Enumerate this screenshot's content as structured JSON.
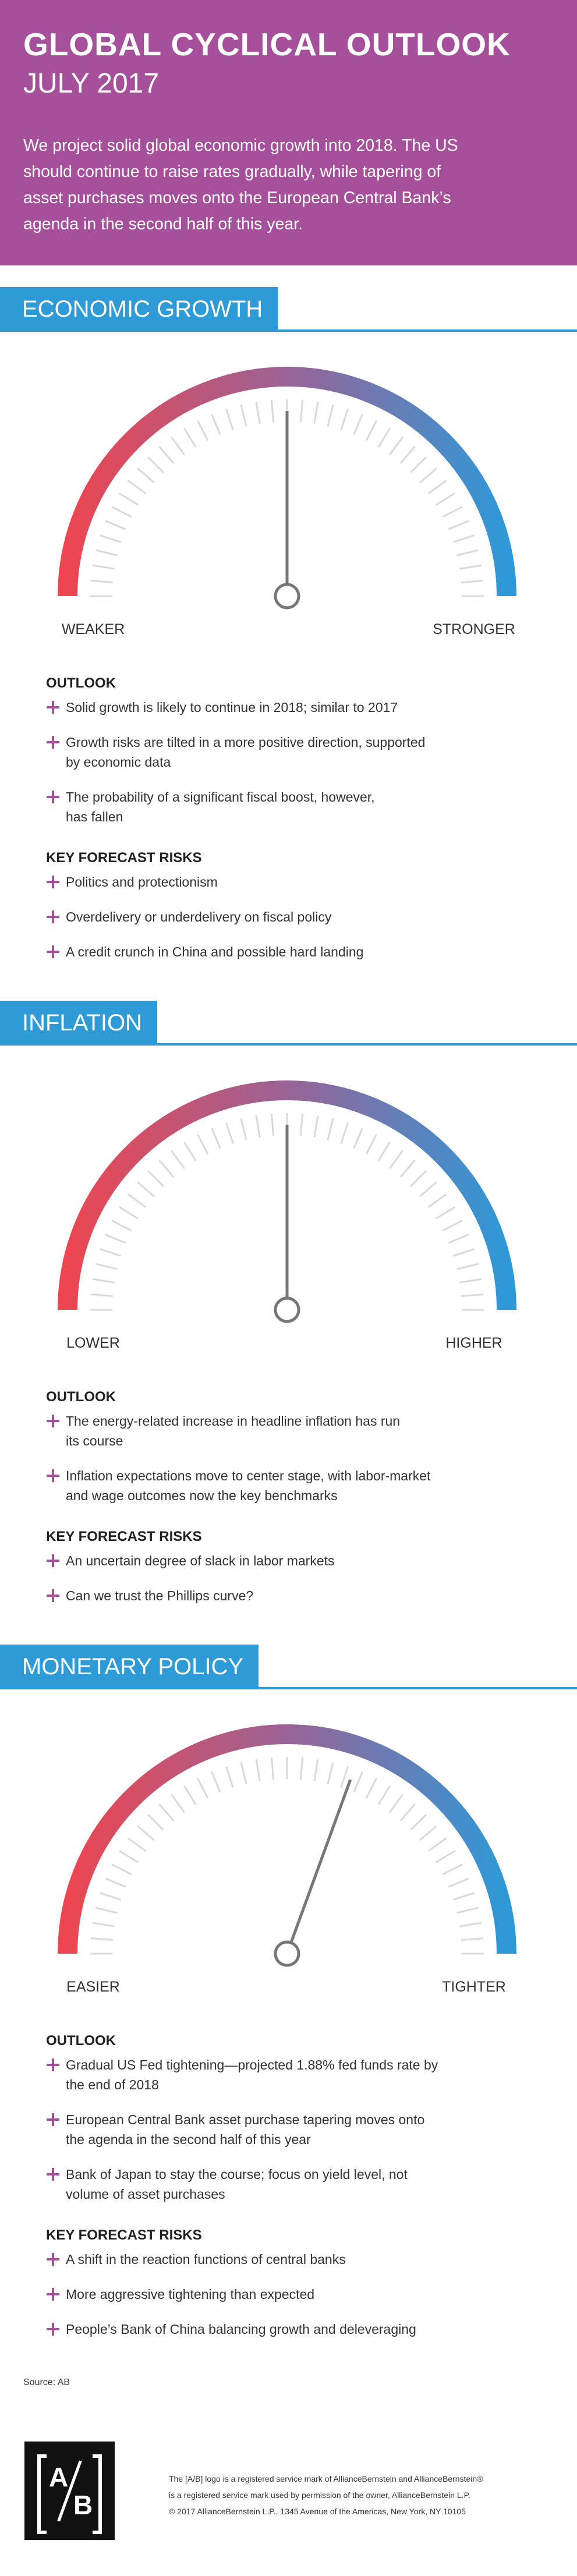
{
  "header": {
    "title": "GLOBAL CYCLICAL OUTLOOK",
    "date": "JULY 2017",
    "intro": [
      "We project solid global economic growth into 2018. The US",
      "should continue to raise rates gradually, while tapering of",
      "asset purchases moves onto the European Central Bank’s",
      "agenda in the second half of this year."
    ]
  },
  "sections": [
    {
      "title": "ECONOMIC GROWTH",
      "gauge": {
        "left_label": "WEAKER",
        "right_label": "STRONGER"
      },
      "outlook_heading": "OUTLOOK",
      "outlook": [
        [
          "Solid growth is likely to continue in 2018; similar to 2017"
        ],
        [
          "Growth risks are tilted in a more positive direction, supported",
          "by economic data"
        ],
        [
          "The probability of a significant fiscal boost, however,",
          "has fallen"
        ]
      ],
      "risks_heading": "KEY FORECAST RISKS",
      "risks": [
        [
          "Politics and protectionism"
        ],
        [
          "Overdelivery or underdelivery on fiscal policy"
        ],
        [
          "A credit crunch in China and possible hard landing"
        ]
      ]
    },
    {
      "title": "INFLATION",
      "gauge": {
        "left_label": "LOWER",
        "right_label": "HIGHER"
      },
      "outlook_heading": "OUTLOOK",
      "outlook": [
        [
          "The energy-related increase in headline inflation has run",
          "its course"
        ],
        [
          "Inflation expectations move to center stage, with labor-market",
          "and wage outcomes now the key benchmarks"
        ]
      ],
      "risks_heading": "KEY FORECAST RISKS",
      "risks": [
        [
          "An uncertain degree of slack in labor markets"
        ],
        [
          "Can we trust the Phillips curve?"
        ]
      ]
    },
    {
      "title": "MONETARY POLICY",
      "gauge": {
        "left_label": "EASIER",
        "right_label": "TIGHTER"
      },
      "outlook_heading": "OUTLOOK",
      "outlook": [
        [
          "Gradual US Fed tightening—projected 1.88% fed funds rate by",
          "the end of 2018"
        ],
        [
          "European Central Bank asset purchase tapering moves onto",
          "the agenda in the second half of this year"
        ],
        [
          "Bank of Japan to stay the course; focus on yield level, not",
          "volume of asset purchases"
        ]
      ],
      "risks_heading": "KEY FORECAST RISKS",
      "risks": [
        [
          "A shift in the reaction functions of central banks"
        ],
        [
          "More aggressive tightening than expected"
        ],
        [
          "People’s Bank of China balancing growth and deleveraging"
        ]
      ]
    }
  ],
  "source": "Source: AB",
  "footer": {
    "logo": [
      "A",
      "B"
    ],
    "notice": [
      "The [A/B] logo is a registered service mark of AllianceBernstein and AllianceBernstein®",
      "is a registered service mark used by permission of the owner, AllianceBernstein L.P.",
      "© 2017 AllianceBernstein L.P., 1345 Avenue of the Americas, New York, NY 10105"
    ]
  }
}
